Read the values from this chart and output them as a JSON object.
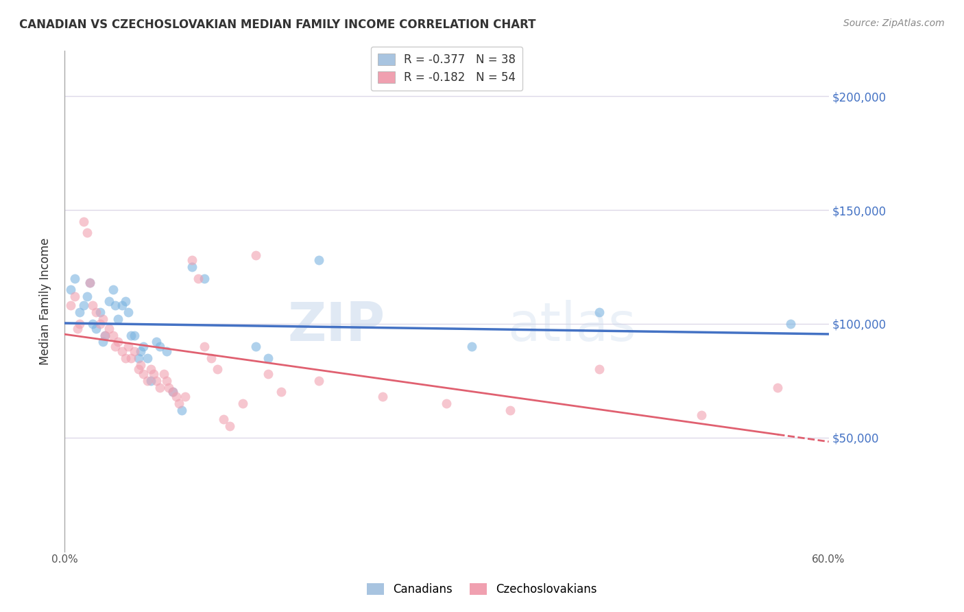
{
  "title": "CANADIAN VS CZECHOSLOVAKIAN MEDIAN FAMILY INCOME CORRELATION CHART",
  "source": "Source: ZipAtlas.com",
  "ylabel": "Median Family Income",
  "watermark": "ZIPatlas",
  "xlim": [
    0.0,
    0.6
  ],
  "ylim": [
    0,
    220000
  ],
  "yticks": [
    50000,
    100000,
    150000,
    200000
  ],
  "ytick_labels": [
    "$50,000",
    "$100,000",
    "$150,000",
    "$200,000"
  ],
  "xticks": [
    0.0,
    0.1,
    0.2,
    0.3,
    0.4,
    0.5,
    0.6
  ],
  "xtick_labels": [
    "0.0%",
    "",
    "",
    "",
    "",
    "",
    "60.0%"
  ],
  "canadians": {
    "color": "#7bb3e0",
    "x": [
      0.005,
      0.008,
      0.012,
      0.015,
      0.018,
      0.02,
      0.022,
      0.025,
      0.028,
      0.03,
      0.032,
      0.035,
      0.038,
      0.04,
      0.042,
      0.045,
      0.048,
      0.05,
      0.052,
      0.055,
      0.058,
      0.06,
      0.062,
      0.065,
      0.068,
      0.072,
      0.075,
      0.08,
      0.085,
      0.092,
      0.1,
      0.11,
      0.15,
      0.16,
      0.2,
      0.32,
      0.42,
      0.57
    ],
    "y": [
      115000,
      120000,
      105000,
      108000,
      112000,
      118000,
      100000,
      98000,
      105000,
      92000,
      95000,
      110000,
      115000,
      108000,
      102000,
      108000,
      110000,
      105000,
      95000,
      95000,
      85000,
      88000,
      90000,
      85000,
      75000,
      92000,
      90000,
      88000,
      70000,
      62000,
      125000,
      120000,
      90000,
      85000,
      128000,
      90000,
      105000,
      100000
    ]
  },
  "czechoslovakians": {
    "color": "#f0a0b0",
    "x": [
      0.005,
      0.008,
      0.01,
      0.012,
      0.015,
      0.018,
      0.02,
      0.022,
      0.025,
      0.028,
      0.03,
      0.032,
      0.035,
      0.038,
      0.04,
      0.042,
      0.045,
      0.048,
      0.05,
      0.052,
      0.055,
      0.058,
      0.06,
      0.062,
      0.065,
      0.068,
      0.07,
      0.072,
      0.075,
      0.078,
      0.08,
      0.082,
      0.085,
      0.088,
      0.09,
      0.095,
      0.1,
      0.105,
      0.11,
      0.115,
      0.12,
      0.125,
      0.13,
      0.14,
      0.15,
      0.16,
      0.17,
      0.2,
      0.25,
      0.3,
      0.35,
      0.42,
      0.5,
      0.56
    ],
    "y": [
      108000,
      112000,
      98000,
      100000,
      145000,
      140000,
      118000,
      108000,
      105000,
      100000,
      102000,
      95000,
      98000,
      95000,
      90000,
      92000,
      88000,
      85000,
      90000,
      85000,
      88000,
      80000,
      82000,
      78000,
      75000,
      80000,
      78000,
      75000,
      72000,
      78000,
      75000,
      72000,
      70000,
      68000,
      65000,
      68000,
      128000,
      120000,
      90000,
      85000,
      80000,
      58000,
      55000,
      65000,
      130000,
      78000,
      70000,
      75000,
      68000,
      65000,
      62000,
      80000,
      60000,
      72000
    ]
  },
  "background_color": "#ffffff",
  "grid_color": "#ddd8e8",
  "marker_size": 100,
  "marker_alpha": 0.6,
  "fig_width": 14.06,
  "fig_height": 8.92,
  "dpi": 100
}
